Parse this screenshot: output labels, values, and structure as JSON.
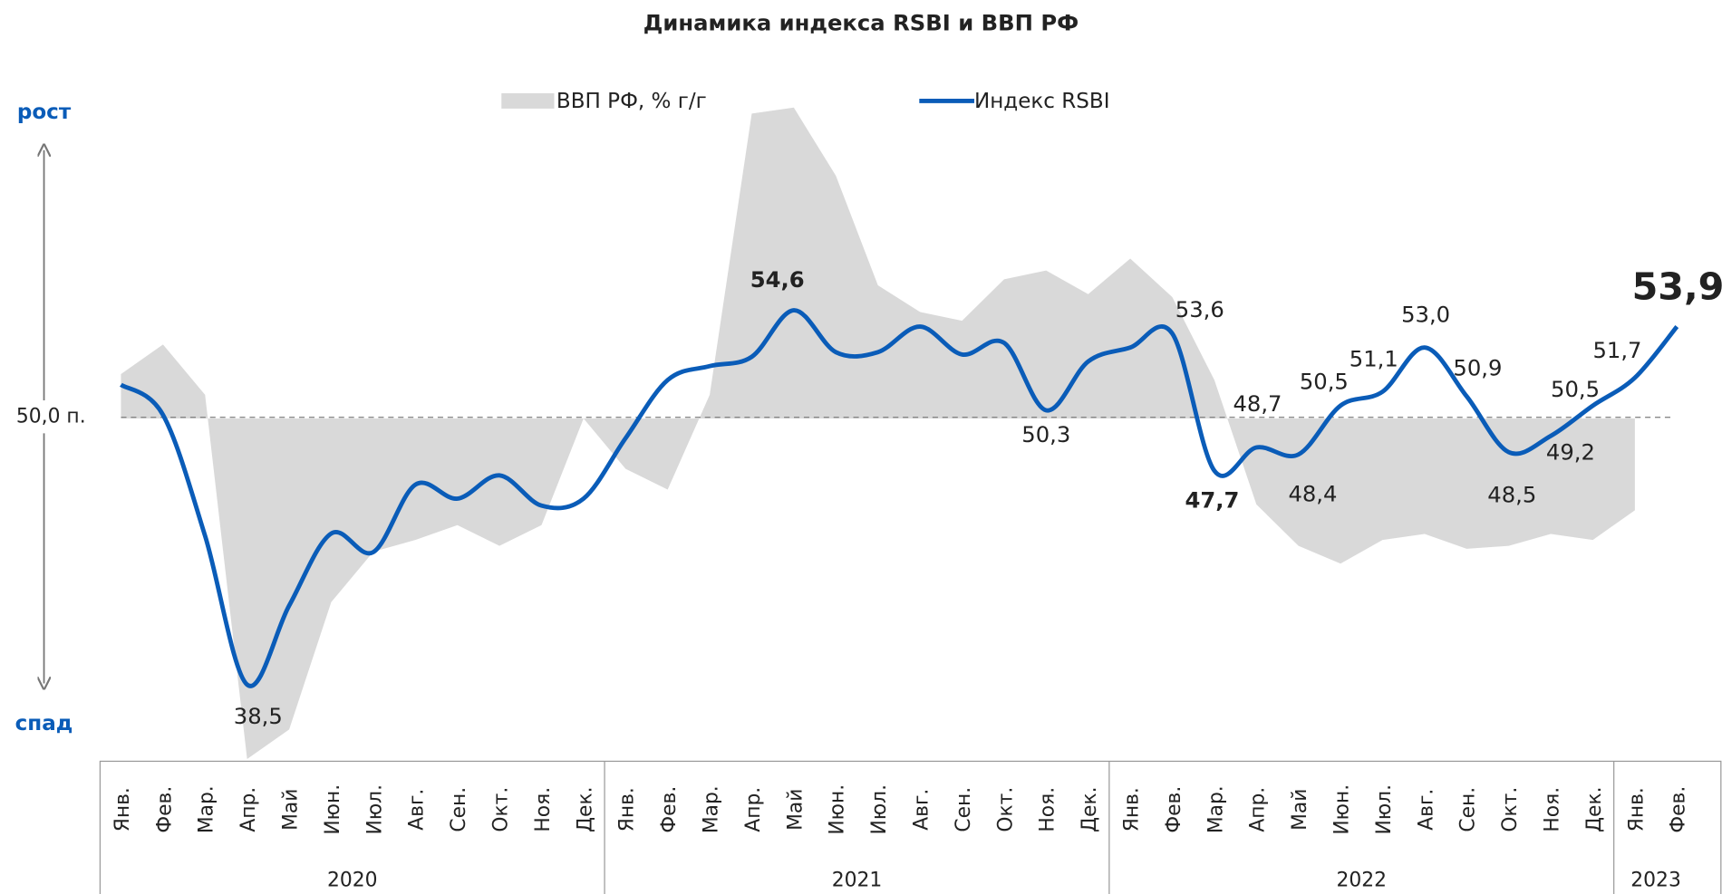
{
  "chart_data": {
    "type": "line",
    "title": "Динамика индекса RSBI и ВВП РФ",
    "up_label": "рост",
    "down_label": "спад",
    "categories": [
      "Янв.",
      "Фев.",
      "Мар.",
      "Апр.",
      "Май",
      "Июн.",
      "Июл.",
      "Авг.",
      "Сен.",
      "Окт.",
      "Ноя.",
      "Дек.",
      "Янв.",
      "Фев.",
      "Мар.",
      "Апр.",
      "Май",
      "Июн.",
      "Июл.",
      "Авг.",
      "Сен.",
      "Окт.",
      "Ноя.",
      "Дек.",
      "Янв.",
      "Фев.",
      "Мар.",
      "Апр.",
      "Май",
      "Июн.",
      "Июл.",
      "Авг.",
      "Сен.",
      "Окт.",
      "Ноя.",
      "Дек.",
      "Янв.",
      "Фев."
    ],
    "years": [
      "2020",
      "2021",
      "2022",
      "2023"
    ],
    "ylim": [
      35.3,
      63.7
    ],
    "yticks": [
      {
        "value": 50,
        "label": "50,0 п."
      }
    ],
    "y2lim": [
      -11.5,
      10.8
    ],
    "legend": "top",
    "series": [
      {
        "name": "ВВП РФ, % г/г",
        "type": "area",
        "axis": "y2",
        "color": "#d9d9d9",
        "values": [
          1.5,
          2.5,
          0.8,
          -11.5,
          -10.5,
          -6.2,
          -4.5,
          -4.1,
          -3.6,
          -4.3,
          -3.6,
          0.0,
          -1.7,
          -2.4,
          0.8,
          10.3,
          10.5,
          8.2,
          4.5,
          3.6,
          3.3,
          4.7,
          5.0,
          4.2,
          5.4,
          4.1,
          1.3,
          -2.9,
          -4.3,
          -4.9,
          -4.1,
          -3.9,
          -4.4,
          -4.3,
          -3.9,
          -4.1,
          -3.1,
          null
        ]
      },
      {
        "name": "Индекс RSBI",
        "type": "line",
        "color": "#0a5cb8",
        "values": [
          51.4,
          50.1,
          44.9,
          38.5,
          41.9,
          45.0,
          44.2,
          47.1,
          46.5,
          47.5,
          46.2,
          46.5,
          49.1,
          51.6,
          52.2,
          52.6,
          54.6,
          52.8,
          52.8,
          53.9,
          52.7,
          53.2,
          50.3,
          52.4,
          53.0,
          53.6,
          47.7,
          48.7,
          48.4,
          50.5,
          51.1,
          53.0,
          50.9,
          48.5,
          49.2,
          50.5,
          51.7,
          53.9
        ],
        "value_labels": [
          null,
          null,
          null,
          "38,5",
          null,
          null,
          null,
          null,
          null,
          null,
          null,
          null,
          null,
          null,
          null,
          null,
          "54,6",
          null,
          null,
          null,
          null,
          null,
          "50,3",
          null,
          null,
          "53,6",
          "47,7",
          "48,7",
          "48,4",
          "50,5",
          "51,1",
          "53,0",
          "50,9",
          "48,5",
          "49,2",
          "50,5",
          "51,7",
          "53,9"
        ]
      }
    ]
  }
}
